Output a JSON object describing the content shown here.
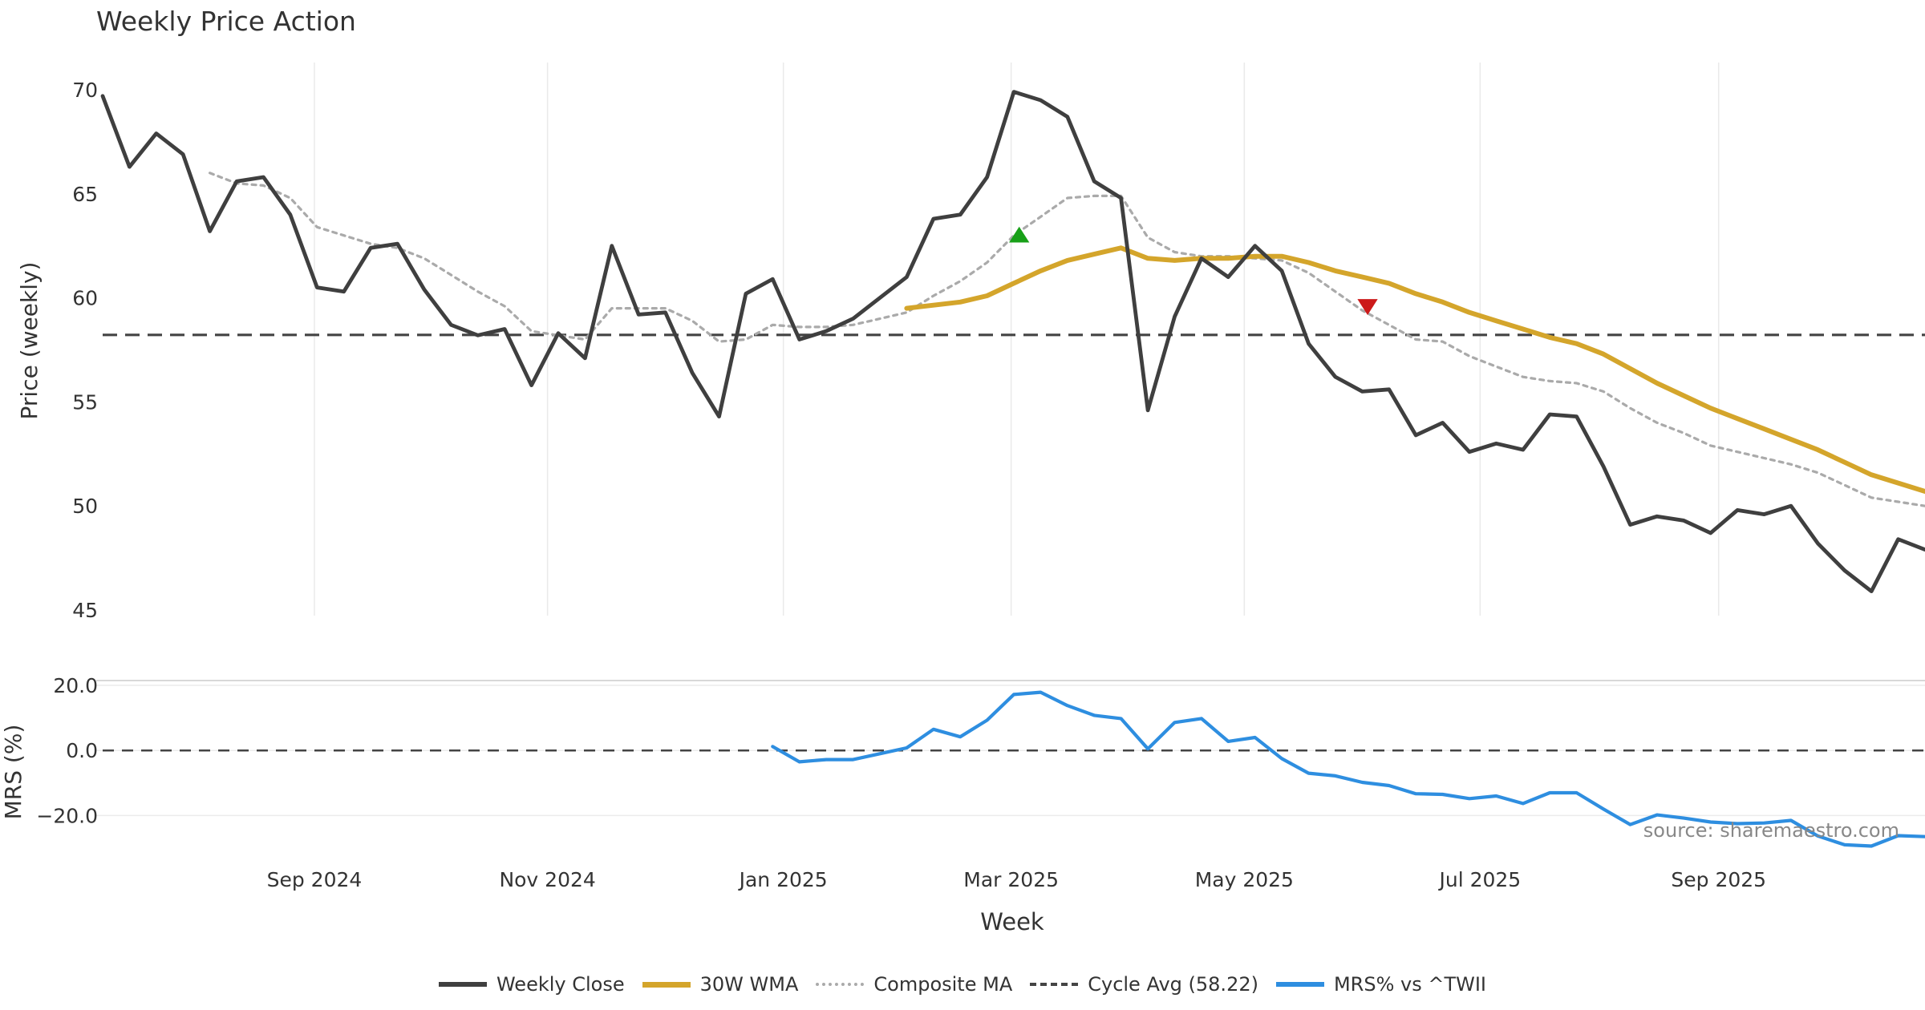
{
  "chart_data": [
    {
      "type": "line",
      "title": "Weekly Price Action",
      "xlabel": "",
      "ylabel": "Price (weekly)",
      "ylim": [
        45,
        70
      ],
      "yticks": [
        45,
        50,
        55,
        60,
        65,
        70
      ],
      "series": [
        {
          "name": "Weekly Close",
          "color": "#3f3f3f",
          "points": [
            [
              0,
              69.7
            ],
            [
              1,
              66.3
            ],
            [
              2,
              67.9
            ],
            [
              3,
              66.9
            ],
            [
              4,
              63.2
            ],
            [
              5,
              65.6
            ],
            [
              6,
              65.8
            ],
            [
              7,
              64.0
            ],
            [
              8,
              60.5
            ],
            [
              9,
              60.3
            ],
            [
              10,
              62.4
            ],
            [
              11,
              62.6
            ],
            [
              12,
              60.4
            ],
            [
              13,
              58.7
            ],
            [
              14,
              58.2
            ],
            [
              15,
              58.5
            ],
            [
              16,
              55.8
            ],
            [
              17,
              58.3
            ],
            [
              18,
              57.1
            ],
            [
              19,
              62.5
            ],
            [
              20,
              59.2
            ],
            [
              21,
              59.3
            ],
            [
              22,
              56.4
            ],
            [
              23,
              54.3
            ],
            [
              24,
              60.2
            ],
            [
              25,
              60.9
            ],
            [
              26,
              58.0
            ],
            [
              27,
              58.4
            ],
            [
              28,
              59.0
            ],
            [
              29,
              60.0
            ],
            [
              30,
              61.0
            ],
            [
              31,
              63.8
            ],
            [
              32,
              64.0
            ],
            [
              33,
              65.8
            ],
            [
              34,
              69.9
            ],
            [
              35,
              69.5
            ],
            [
              36,
              68.7
            ],
            [
              37,
              65.6
            ],
            [
              38,
              64.8
            ],
            [
              39,
              54.6
            ],
            [
              40,
              59.1
            ],
            [
              41,
              61.9
            ],
            [
              42,
              61.0
            ],
            [
              43,
              62.5
            ],
            [
              44,
              61.3
            ],
            [
              45,
              57.8
            ],
            [
              46,
              56.2
            ],
            [
              47,
              55.5
            ],
            [
              48,
              55.6
            ],
            [
              49,
              53.4
            ],
            [
              50,
              54.0
            ],
            [
              51,
              52.6
            ],
            [
              52,
              53.0
            ],
            [
              53,
              52.7
            ],
            [
              54,
              54.4
            ],
            [
              55,
              54.3
            ],
            [
              56,
              51.9
            ],
            [
              57,
              49.1
            ],
            [
              58,
              49.5
            ],
            [
              59,
              49.3
            ],
            [
              60,
              48.7
            ],
            [
              61,
              49.8
            ],
            [
              62,
              49.6
            ],
            [
              63,
              50.0
            ],
            [
              64,
              48.2
            ],
            [
              65,
              46.9
            ],
            [
              66,
              45.9
            ],
            [
              67,
              48.4
            ],
            [
              68,
              47.9
            ]
          ]
        },
        {
          "name": "30W WMA",
          "color": "#d4a52b",
          "points": [
            [
              30,
              59.5
            ],
            [
              32,
              59.8
            ],
            [
              33,
              60.1
            ],
            [
              34,
              60.7
            ],
            [
              35,
              61.3
            ],
            [
              36,
              61.8
            ],
            [
              37,
              62.1
            ],
            [
              38,
              62.4
            ],
            [
              39,
              61.9
            ],
            [
              40,
              61.8
            ],
            [
              41,
              61.9
            ],
            [
              42,
              61.9
            ],
            [
              43,
              62.0
            ],
            [
              44,
              62.0
            ],
            [
              45,
              61.7
            ],
            [
              46,
              61.3
            ],
            [
              47,
              61.0
            ],
            [
              48,
              60.7
            ],
            [
              49,
              60.2
            ],
            [
              50,
              59.8
            ],
            [
              51,
              59.3
            ],
            [
              52,
              58.9
            ],
            [
              53,
              58.5
            ],
            [
              54,
              58.1
            ],
            [
              55,
              57.8
            ],
            [
              56,
              57.3
            ],
            [
              57,
              56.6
            ],
            [
              58,
              55.9
            ],
            [
              59,
              55.3
            ],
            [
              60,
              54.7
            ],
            [
              61,
              54.2
            ],
            [
              62,
              53.7
            ],
            [
              63,
              53.2
            ],
            [
              64,
              52.7
            ],
            [
              65,
              52.1
            ],
            [
              66,
              51.5
            ],
            [
              67,
              51.1
            ],
            [
              68,
              50.7
            ]
          ]
        },
        {
          "name": "Composite MA",
          "color": "#aaaaaa",
          "points": [
            [
              4,
              66.0
            ],
            [
              5,
              65.5
            ],
            [
              6,
              65.4
            ],
            [
              7,
              64.8
            ],
            [
              8,
              63.4
            ],
            [
              9,
              63.0
            ],
            [
              10,
              62.6
            ],
            [
              11,
              62.4
            ],
            [
              12,
              61.9
            ],
            [
              13,
              61.1
            ],
            [
              14,
              60.3
            ],
            [
              15,
              59.6
            ],
            [
              16,
              58.4
            ],
            [
              17,
              58.2
            ],
            [
              18,
              58.0
            ],
            [
              19,
              59.5
            ],
            [
              20,
              59.5
            ],
            [
              21,
              59.5
            ],
            [
              22,
              58.9
            ],
            [
              23,
              57.9
            ],
            [
              24,
              58.0
            ],
            [
              25,
              58.7
            ],
            [
              26,
              58.6
            ],
            [
              27,
              58.6
            ],
            [
              28,
              58.7
            ],
            [
              29,
              59.0
            ],
            [
              30,
              59.3
            ],
            [
              31,
              60.1
            ],
            [
              32,
              60.8
            ],
            [
              33,
              61.7
            ],
            [
              34,
              63.0
            ],
            [
              35,
              63.9
            ],
            [
              36,
              64.8
            ],
            [
              37,
              64.9
            ],
            [
              38,
              64.9
            ],
            [
              39,
              62.9
            ],
            [
              40,
              62.2
            ],
            [
              41,
              62.0
            ],
            [
              42,
              62.0
            ],
            [
              43,
              61.9
            ],
            [
              44,
              61.8
            ],
            [
              45,
              61.2
            ],
            [
              46,
              60.3
            ],
            [
              47,
              59.4
            ],
            [
              48,
              58.7
            ],
            [
              49,
              58.0
            ],
            [
              50,
              57.9
            ],
            [
              51,
              57.2
            ],
            [
              52,
              56.7
            ],
            [
              53,
              56.2
            ],
            [
              54,
              56.0
            ],
            [
              55,
              55.9
            ],
            [
              56,
              55.5
            ],
            [
              57,
              54.7
            ],
            [
              58,
              54.0
            ],
            [
              59,
              53.5
            ],
            [
              60,
              52.9
            ],
            [
              61,
              52.6
            ],
            [
              62,
              52.3
            ],
            [
              63,
              52.0
            ],
            [
              64,
              51.6
            ],
            [
              65,
              51.0
            ],
            [
              66,
              50.4
            ],
            [
              67,
              50.2
            ],
            [
              68,
              50.0
            ]
          ]
        }
      ],
      "reference_lines": [
        {
          "name": "Cycle Avg (58.22)",
          "y": 58.22,
          "style": "dashed",
          "color": "#444444"
        }
      ],
      "markers": [
        {
          "type": "buy-triangle-up",
          "x": 34.2,
          "y": 63.0,
          "color": "#18a018"
        },
        {
          "type": "sell-triangle-down",
          "x": 47.2,
          "y": 59.6,
          "color": "#cc1a1a"
        }
      ]
    },
    {
      "type": "line",
      "title": "",
      "xlabel": "Week",
      "ylabel": "MRS (%)",
      "ylim": [
        -31,
        21
      ],
      "yticks": [
        -20,
        0,
        20
      ],
      "ytick_labels": [
        "−20.0",
        "0.0",
        "20.0"
      ],
      "xticks": [
        {
          "x": 7.9,
          "label": "Sep 2024"
        },
        {
          "x": 16.6,
          "label": "Nov 2024"
        },
        {
          "x": 25.4,
          "label": "Jan 2025"
        },
        {
          "x": 33.9,
          "label": "Mar 2025"
        },
        {
          "x": 42.6,
          "label": "May 2025"
        },
        {
          "x": 51.4,
          "label": "Jul 2025"
        },
        {
          "x": 60.3,
          "label": "Sep 2025"
        }
      ],
      "series": [
        {
          "name": "MRS% vs ^TWII",
          "color": "#2e8ee0",
          "points": [
            [
              25.0,
              1.2
            ],
            [
              26,
              -3.5
            ],
            [
              27,
              -2.8
            ],
            [
              28,
              -2.8
            ],
            [
              29,
              -1.0
            ],
            [
              30,
              0.8
            ],
            [
              31,
              6.5
            ],
            [
              32,
              4.2
            ],
            [
              33,
              9.3
            ],
            [
              34,
              17.2
            ],
            [
              35,
              17.9
            ],
            [
              36,
              13.8
            ],
            [
              37,
              10.8
            ],
            [
              38,
              9.8
            ],
            [
              39,
              0.5
            ],
            [
              40,
              8.6
            ],
            [
              41,
              9.8
            ],
            [
              42,
              2.8
            ],
            [
              43,
              4.0
            ],
            [
              44,
              -2.5
            ],
            [
              45,
              -7.0
            ],
            [
              46,
              -7.8
            ],
            [
              47,
              -9.8
            ],
            [
              48,
              -10.8
            ],
            [
              49,
              -13.3
            ],
            [
              50,
              -13.5
            ],
            [
              51,
              -14.8
            ],
            [
              52,
              -14.0
            ],
            [
              53,
              -16.3
            ],
            [
              54,
              -13.0
            ],
            [
              55,
              -13.0
            ],
            [
              56,
              -18.0
            ],
            [
              57,
              -22.8
            ],
            [
              58,
              -19.8
            ],
            [
              59,
              -20.8
            ],
            [
              60,
              -22.0
            ],
            [
              61,
              -22.5
            ],
            [
              62,
              -22.3
            ],
            [
              63,
              -21.5
            ],
            [
              64,
              -26.3
            ],
            [
              65,
              -29.0
            ],
            [
              66,
              -29.4
            ],
            [
              67,
              -26.2
            ],
            [
              68,
              -26.5
            ]
          ]
        }
      ],
      "reference_lines": [
        {
          "y": 0,
          "style": "dashed",
          "color": "#444444"
        }
      ],
      "annotation": "source: sharemaestro.com"
    }
  ],
  "legend": [
    {
      "label": "Weekly Close",
      "color": "#3f3f3f",
      "style": "solid"
    },
    {
      "label": "30W WMA",
      "color": "#d4a52b",
      "style": "solid"
    },
    {
      "label": "Composite MA",
      "color": "#aaaaaa",
      "style": "dotted"
    },
    {
      "label": "Cycle Avg (58.22)",
      "color": "#444444",
      "style": "dashed"
    },
    {
      "label": "MRS% vs ^TWII",
      "color": "#2e8ee0",
      "style": "solid"
    }
  ]
}
